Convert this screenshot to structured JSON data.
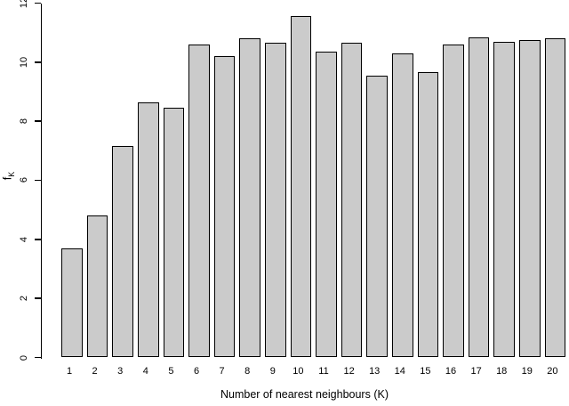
{
  "chart_data": {
    "type": "bar",
    "title": "",
    "categories": [
      "1",
      "2",
      "3",
      "4",
      "5",
      "6",
      "7",
      "8",
      "9",
      "10",
      "11",
      "12",
      "13",
      "14",
      "15",
      "16",
      "17",
      "18",
      "19",
      "20"
    ],
    "values": [
      3.7,
      4.8,
      7.15,
      8.65,
      8.45,
      10.6,
      10.2,
      10.8,
      10.65,
      11.55,
      10.35,
      10.65,
      9.55,
      10.3,
      9.65,
      10.6,
      10.85,
      10.7,
      10.75,
      10.8
    ],
    "xlabel": "Number of nearest neighbours (K)",
    "ylabel": {
      "base": "f",
      "sub": "K"
    },
    "yticks": [
      "0",
      "2",
      "4",
      "6",
      "8",
      "10",
      "12"
    ],
    "ylim": [
      0,
      12
    ],
    "grid": false,
    "legend": false,
    "colors": {
      "bar_fill": "#cbcbcb",
      "bar_border": "#000000",
      "axis": "#000000",
      "text": "#000000",
      "background": "#ffffff"
    }
  }
}
